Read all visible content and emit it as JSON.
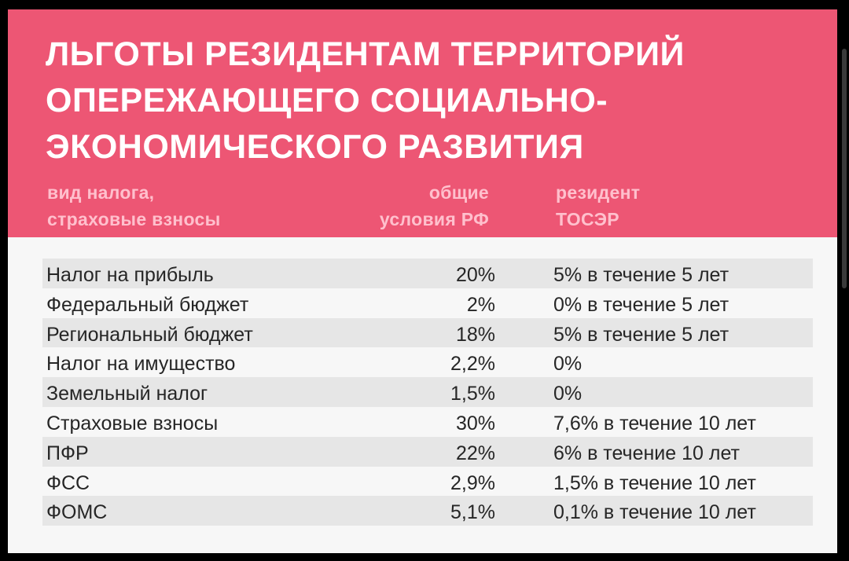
{
  "title_lines": [
    "ЛЬГОТЫ РЕЗИДЕНТАМ ТЕРРИТОРИЙ",
    "ОПЕРЕЖАЮЩЕГО СОЦИАЛЬНО-",
    "ЭКОНОМИЧЕСКОГО РАЗВИТИЯ"
  ],
  "columns": {
    "type": [
      "вид налога,",
      "страховые взносы"
    ],
    "general": [
      "общие",
      "условия РФ"
    ],
    "resident": [
      "резидент",
      "ТОСЭР"
    ]
  },
  "rows": [
    {
      "name": "Налог на прибыль",
      "general": "20%",
      "resident": "5% в течение 5 лет"
    },
    {
      "name": "Федеральный бюджет",
      "general": "2%",
      "resident": "0% в течение 5 лет"
    },
    {
      "name": "Региональный бюджет",
      "general": "18%",
      "resident": "5% в течение 5 лет"
    },
    {
      "name": "Налог на имущество",
      "general": "2,2%",
      "resident": "0%"
    },
    {
      "name": "Земельный налог",
      "general": "1,5%",
      "resident": "0%"
    },
    {
      "name": "Страховые взносы",
      "general": "30%",
      "resident": "7,6% в течение 10 лет"
    },
    {
      "name": "ПФР",
      "general": "22%",
      "resident": "6% в течение 10 лет"
    },
    {
      "name": "ФСС",
      "general": "2,9%",
      "resident": "1,5% в течение 10 лет"
    },
    {
      "name": "ФОМС",
      "general": "5,1%",
      "resident": "0,1% в течение 10 лет"
    }
  ],
  "colors": {
    "header_bg": "#ed5674",
    "title_text": "#ffffff",
    "column_header_text": "#ffc0cd",
    "row_shade": "#e6e6e6",
    "body_text": "#262626"
  }
}
